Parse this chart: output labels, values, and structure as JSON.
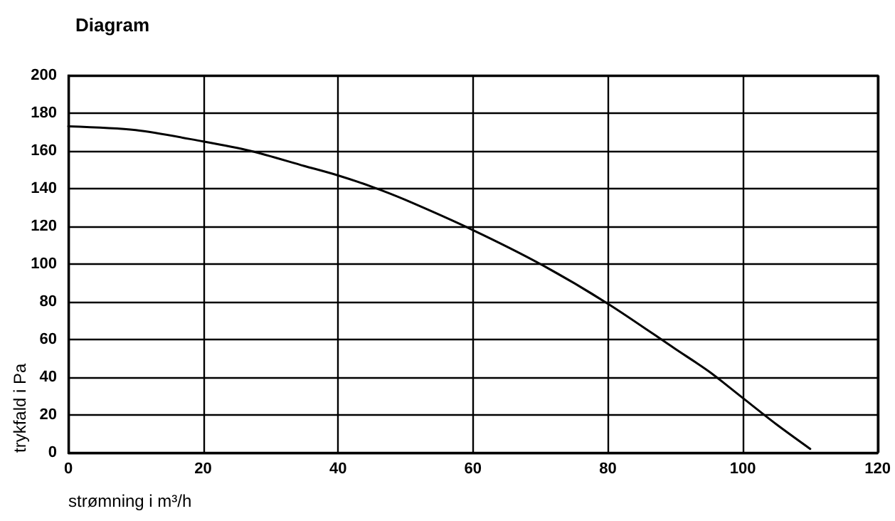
{
  "chart_data": {
    "type": "line",
    "title": "Diagram",
    "xlabel": "strømning i m³/h",
    "ylabel": "trykfald i Pa",
    "x": [
      0,
      10,
      20,
      27,
      35,
      40,
      45,
      50,
      60,
      70,
      80,
      90,
      95,
      100,
      105,
      110
    ],
    "series": [
      {
        "color": "#000000",
        "values": [
          173,
          171,
          165,
          160,
          152,
          147,
          141,
          134,
          118,
          100,
          79,
          55,
          43,
          29,
          15,
          2
        ]
      }
    ],
    "xlim": [
      0,
      120
    ],
    "xticks": [
      0,
      20,
      40,
      60,
      80,
      100,
      120
    ],
    "ylim": [
      0,
      200
    ],
    "yticks": [
      0,
      20,
      40,
      60,
      80,
      100,
      120,
      140,
      160,
      180,
      200
    ],
    "grid": true,
    "marker": "none",
    "line_style": "solid"
  }
}
